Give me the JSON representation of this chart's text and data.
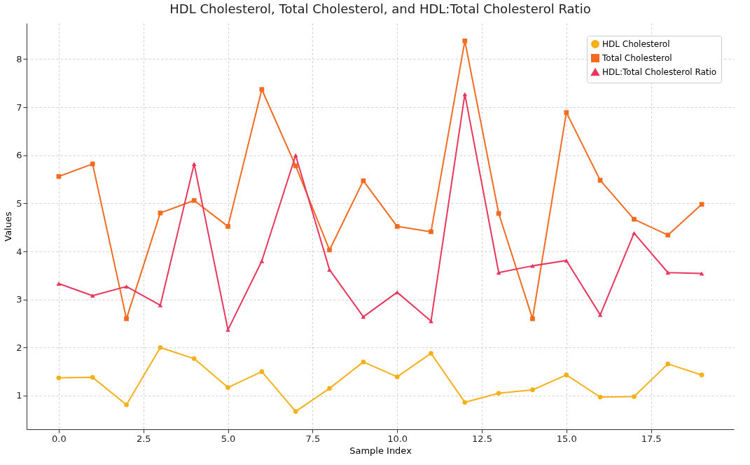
{
  "chart_data": {
    "type": "line",
    "title": "HDL Cholesterol, Total Cholesterol, and HDL:Total Cholesterol Ratio",
    "xlabel": "Sample Index",
    "ylabel": "Values",
    "x": [
      0,
      1,
      2,
      3,
      4,
      5,
      6,
      7,
      8,
      9,
      10,
      11,
      12,
      13,
      14,
      15,
      16,
      17,
      18,
      19
    ],
    "series": [
      {
        "name": "HDL Cholesterol",
        "color": "#f5b01a",
        "marker": "circle",
        "values": [
          1.37,
          1.38,
          0.81,
          2.0,
          1.77,
          1.17,
          1.5,
          0.67,
          1.15,
          1.7,
          1.39,
          1.88,
          0.86,
          1.05,
          1.12,
          1.43,
          0.97,
          0.98,
          1.66,
          1.43
        ]
      },
      {
        "name": "Total Cholesterol",
        "color": "#f26b21",
        "marker": "square",
        "values": [
          5.56,
          5.82,
          2.6,
          4.8,
          5.06,
          4.52,
          7.37,
          5.78,
          4.03,
          5.47,
          4.52,
          4.41,
          8.38,
          4.79,
          2.6,
          6.89,
          5.48,
          4.67,
          4.34,
          4.98
        ]
      },
      {
        "name": "HDL:Total Cholesterol Ratio",
        "color": "#e8365d",
        "marker": "triangle",
        "values": [
          3.33,
          3.08,
          3.27,
          2.88,
          5.82,
          2.37,
          3.8,
          6.0,
          3.62,
          2.64,
          3.15,
          2.55,
          7.27,
          3.56,
          3.7,
          3.81,
          2.68,
          4.38,
          3.56,
          3.54
        ]
      }
    ],
    "xlim": [
      -0.95,
      19.95
    ],
    "xticks": [
      {
        "value": 0,
        "label": "0.0"
      },
      2.5,
      {
        "value": 5,
        "label": "5.0"
      },
      7.5,
      {
        "value": 10,
        "label": "10.0"
      },
      12.5,
      {
        "value": 15,
        "label": "15.0"
      },
      17.5
    ],
    "ylim": [
      0.3,
      8.75
    ],
    "yticks": [
      1,
      2,
      3,
      4,
      5,
      6,
      7,
      8
    ],
    "grid": true,
    "legend": "top right",
    "line_style": "solid"
  }
}
